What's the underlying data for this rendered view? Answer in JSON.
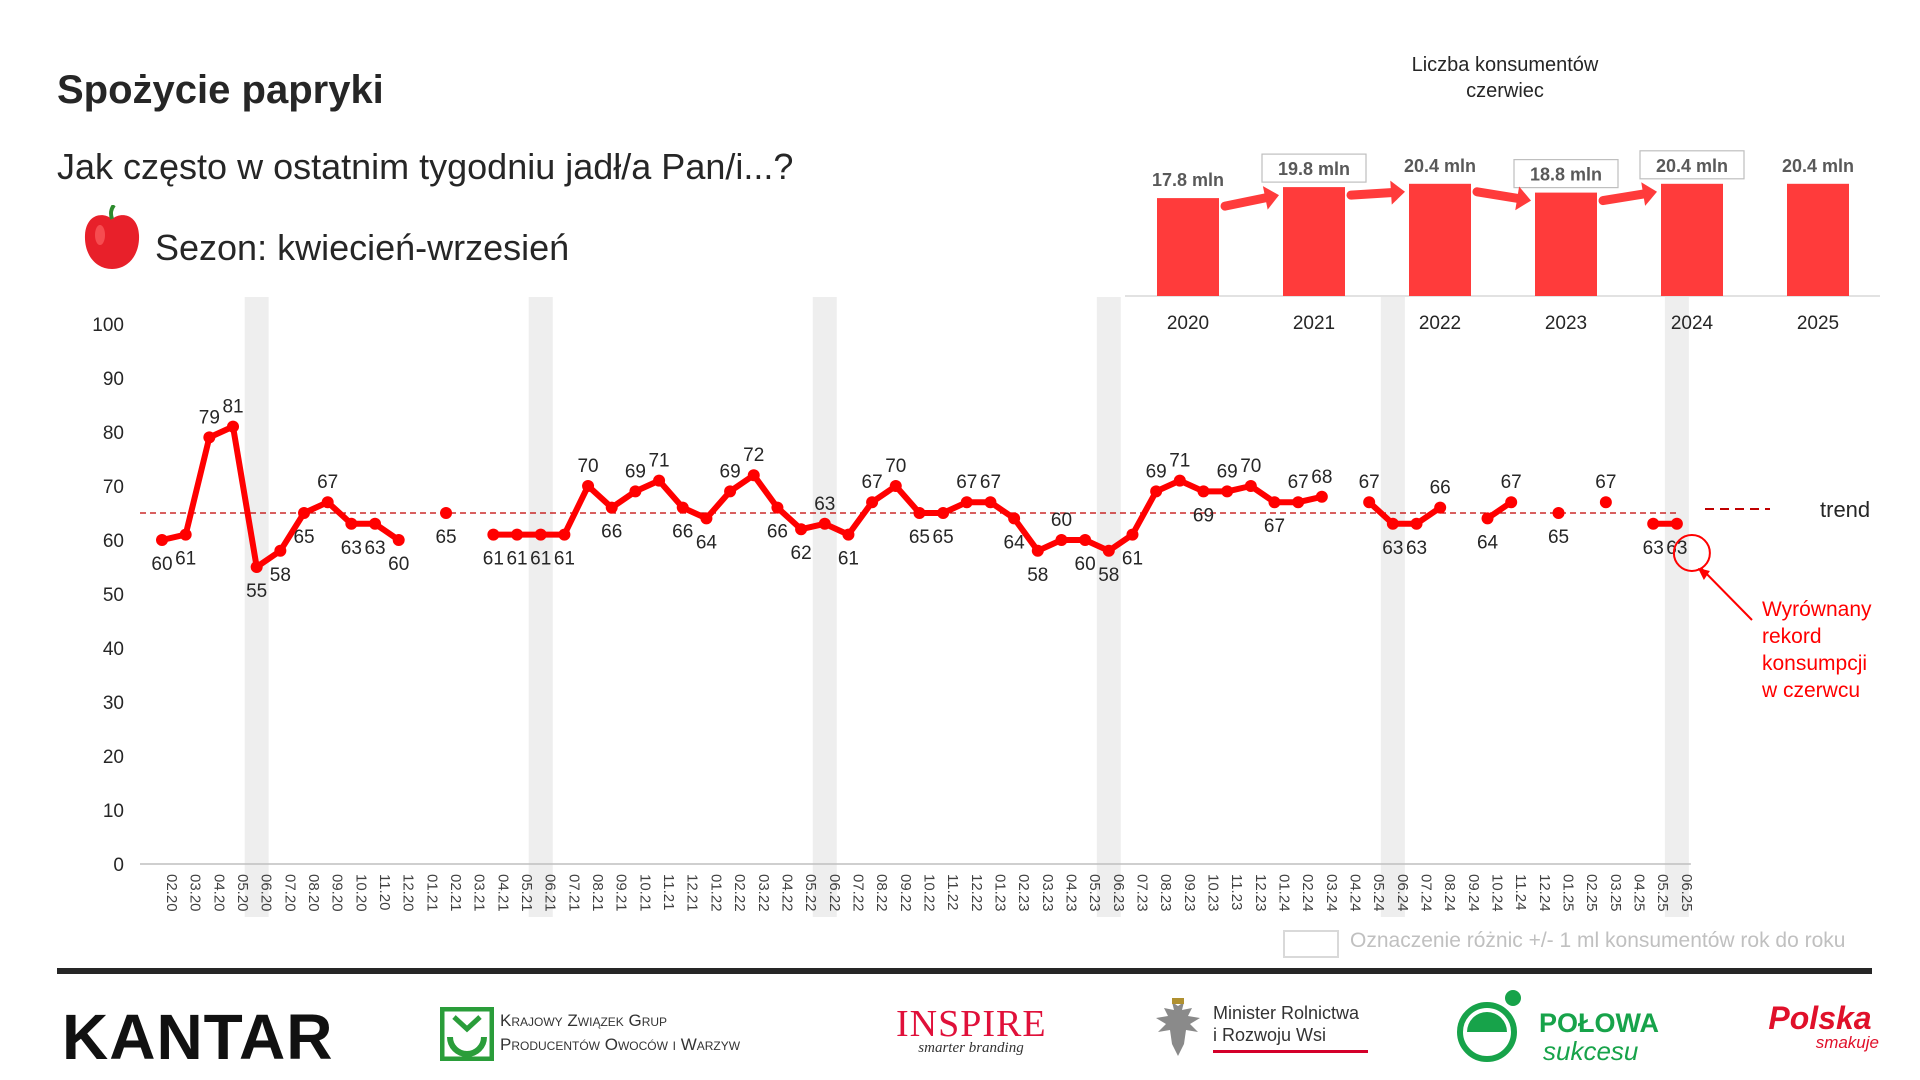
{
  "header": {
    "title": "Spożycie papryki",
    "question": "Jak często w ostatnim tygodniu jadł/a Pan/i...?",
    "season": "Sezon: kwiecień-wrzesień",
    "season_icon": "pepper-icon"
  },
  "colors": {
    "series": "#ff0000",
    "bars": "#ff3b3b",
    "trend": "#c00000",
    "highlight": "#eeeeee",
    "annotation": "#ff0000"
  },
  "chart_data": [
    {
      "type": "line",
      "title": "",
      "ylim": [
        0,
        100
      ],
      "yticks": [
        0,
        10,
        20,
        30,
        40,
        50,
        60,
        70,
        80,
        90,
        100
      ],
      "categories": [
        "02.20",
        "03.20",
        "04.20",
        "05.20",
        "06.20",
        "07.20",
        "08.20",
        "09.20",
        "10.20",
        "11.20",
        "12.20",
        "01.21",
        "02.21",
        "03.21",
        "04.21",
        "05.21",
        "06.21",
        "07.21",
        "08.21",
        "09.21",
        "10.21",
        "11.21",
        "12.21",
        "01.22",
        "02.22",
        "03.22",
        "04.22",
        "05.22",
        "06.22",
        "07.22",
        "08.22",
        "09.22",
        "10.22",
        "11.22",
        "12.22",
        "01.23",
        "02.23",
        "03.23",
        "04.23",
        "05.23",
        "06.23",
        "07.23",
        "08.23",
        "09.23",
        "10.23",
        "11.23",
        "12.23",
        "01.24",
        "02.24",
        "03.24",
        "04.24",
        "05.24",
        "06.24",
        "07.24",
        "08.24",
        "09.24",
        "10.24",
        "11.24",
        "12.24",
        "01.25",
        "02.25",
        "03.25",
        "04.25",
        "05.25",
        "06.25"
      ],
      "series": [
        {
          "name": "",
          "values": [
            60,
            61,
            79,
            81,
            55,
            58,
            65,
            67,
            63,
            63,
            60,
            null,
            65,
            null,
            61,
            61,
            61,
            61,
            70,
            66,
            69,
            71,
            66,
            64,
            69,
            72,
            66,
            62,
            63,
            61,
            67,
            70,
            65,
            65,
            67,
            67,
            64,
            58,
            60,
            60,
            58,
            61,
            69,
            71,
            69,
            69,
            70,
            67,
            67,
            68,
            null,
            67,
            63,
            63,
            66,
            null,
            64,
            67,
            null,
            65,
            null,
            67,
            null,
            63,
            63
          ]
        }
      ],
      "labels": [
        "60",
        "61",
        "79",
        "81",
        "55",
        "58",
        "65",
        "67",
        "63",
        "63",
        "60",
        "",
        "65",
        "",
        "61",
        "61",
        "61",
        "61",
        "70",
        "66",
        "69",
        "71",
        "66",
        "64",
        "69",
        "72",
        "66",
        "62",
        "63",
        "61",
        "67",
        "70",
        "65",
        "65",
        "67",
        "67",
        "64",
        "58",
        "60",
        "60",
        "58",
        "61",
        "69",
        "71",
        "69",
        "69",
        "70",
        "67",
        "67",
        "68",
        "",
        "67",
        "63",
        "63",
        "66",
        "",
        "64",
        "67",
        "",
        "65",
        "",
        "67",
        "",
        "63",
        "63"
      ],
      "highlighted_categories": [
        "06.20",
        "06.21",
        "06.22",
        "06.23",
        "06.24",
        "06.25"
      ],
      "trend": {
        "value": 65,
        "label": "trend"
      },
      "legend_note": "Oznaczenie różnic +/- 1 ml konsumentów rok do roku",
      "annotation": {
        "category": "06.25",
        "text_lines": [
          "Wyrównany",
          "rekord",
          "konsumpcji",
          "w czerwcu"
        ]
      },
      "grid": false
    },
    {
      "type": "bar",
      "title_lines": [
        "Liczba konsumentów",
        "czerwiec"
      ],
      "categories": [
        "2020",
        "2021",
        "2022",
        "2023",
        "2024",
        "2025"
      ],
      "values": [
        17.8,
        19.8,
        20.4,
        18.8,
        20.4,
        20.4
      ],
      "value_labels": [
        "17.8  mln",
        "19.8  mln",
        "20.4  mln",
        "18.8  mln",
        "20.4  mln",
        "20.4  mln"
      ],
      "boxed": [
        false,
        true,
        false,
        true,
        true,
        false
      ],
      "change_arrows": [
        {
          "from": "2020",
          "to": "2021"
        },
        {
          "from": "2021",
          "to": "2022"
        },
        {
          "from": "2022",
          "to": "2023"
        },
        {
          "from": "2023",
          "to": "2024"
        }
      ]
    }
  ],
  "footer": {
    "logos": [
      {
        "name": "kantar-logo",
        "text": "KANTAR"
      },
      {
        "name": "kzgpowiw-logo",
        "text_lines": [
          "Krajowy Związek Grup",
          "Producentów Owoców i Warzyw"
        ]
      },
      {
        "name": "inspire-logo",
        "text": "INSPIRE",
        "subtext": "smarter branding"
      },
      {
        "name": "ministry-logo",
        "text_lines": [
          "Minister Rolnictwa",
          "i Rozwoju Wsi"
        ]
      },
      {
        "name": "polowa-sukcesu-logo",
        "text": "POŁOWA",
        "subtext": "sukcesu"
      },
      {
        "name": "polska-smakuje-logo",
        "text": "Polska",
        "subtext": "smakuje"
      }
    ]
  }
}
